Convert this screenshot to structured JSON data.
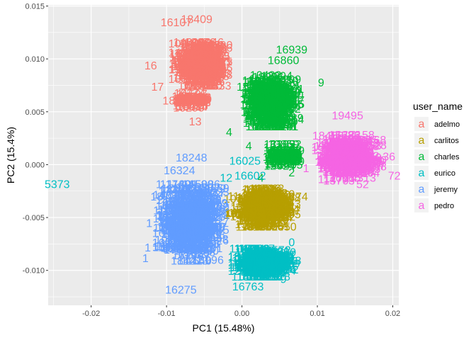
{
  "chart_data": {
    "type": "scatter",
    "title": "",
    "xlabel": "PC1 (15.48%)",
    "ylabel": "PC2 (15.4%)",
    "xlim": [
      -0.0257,
      0.0208
    ],
    "ylim": [
      -0.0133,
      0.0151
    ],
    "x_ticks": [
      -0.02,
      -0.01,
      0.0,
      0.01,
      0.02
    ],
    "x_tick_labels": [
      "-0.02",
      "-0.01",
      "0.00",
      "0.01",
      "0.02"
    ],
    "y_ticks": [
      -0.01,
      -0.005,
      0.0,
      0.005,
      0.01,
      0.015
    ],
    "y_tick_labels": [
      "-0.010",
      "-0.005",
      "0.000",
      "0.005",
      "0.010",
      "0.015"
    ],
    "grid": true,
    "legend": {
      "title": "user_name",
      "position": "right"
    },
    "series": [
      {
        "name": "adelmo",
        "color": "#F8766D",
        "clusters": [
          {
            "cx": -0.0055,
            "cy": 0.0095,
            "sx": 0.0018,
            "sy": 0.0017,
            "n": 240
          },
          {
            "cx": -0.0068,
            "cy": 0.006,
            "sx": 0.0006,
            "sy": 0.0007,
            "n": 40
          }
        ],
        "labels": [
          {
            "text": "16107",
            "x": -0.0087,
            "y": 0.0135
          },
          {
            "text": "18409",
            "x": -0.006,
            "y": 0.0138
          },
          {
            "text": "16",
            "x": -0.0121,
            "y": 0.0094
          },
          {
            "text": "17",
            "x": -0.0112,
            "y": 0.0074
          },
          {
            "text": "18",
            "x": -0.0097,
            "y": 0.0061
          },
          {
            "text": "13",
            "x": -0.0062,
            "y": 0.0041
          }
        ]
      },
      {
        "name": "carlitos",
        "color": "#B79F00",
        "clusters": [
          {
            "cx": 0.0027,
            "cy": -0.0041,
            "sx": 0.0025,
            "sy": 0.0015,
            "n": 220
          }
        ],
        "labels": [
          {
            "text": "274",
            "x": 0.0075,
            "y": -0.003
          }
        ]
      },
      {
        "name": "charles",
        "color": "#00BA38",
        "clusters": [
          {
            "cx": 0.0038,
            "cy": 0.006,
            "sx": 0.002,
            "sy": 0.002,
            "n": 250
          },
          {
            "cx": 0.0055,
            "cy": 0.0008,
            "sx": 0.0006,
            "sy": 0.0009,
            "n": 50
          }
        ],
        "labels": [
          {
            "text": "16939",
            "x": 0.0066,
            "y": 0.0109
          },
          {
            "text": "16860",
            "x": 0.0055,
            "y": 0.0099
          },
          {
            "text": "9",
            "x": 0.0105,
            "y": 0.0078
          },
          {
            "text": "4",
            "x": -0.0017,
            "y": 0.0031
          },
          {
            "text": "4",
            "x": 0.0009,
            "y": 0.0018
          },
          {
            "text": "4",
            "x": 0.0025,
            "y": -0.0012
          },
          {
            "text": "2",
            "x": 0.0066,
            "y": -0.0007
          }
        ]
      },
      {
        "name": "eurico",
        "color": "#00BFC4",
        "clusters": [
          {
            "cx": 0.003,
            "cy": -0.0093,
            "sx": 0.0023,
            "sy": 0.0011,
            "n": 220
          }
        ],
        "labels": [
          {
            "text": "5373",
            "x": -0.0245,
            "y": -0.0018
          },
          {
            "text": "16025",
            "x": 0.0004,
            "y": 0.0004
          },
          {
            "text": "16602",
            "x": 0.0011,
            "y": -0.001
          },
          {
            "text": "12",
            "x": -0.0021,
            "y": -0.0012
          },
          {
            "text": "0",
            "x": 0.0066,
            "y": -0.0073
          },
          {
            "text": "2",
            "x": 0.0071,
            "y": -0.0099
          },
          {
            "text": "16763",
            "x": 0.0008,
            "y": -0.0115
          },
          {
            "text": "9",
            "x": 0.0055,
            "y": -0.0108
          }
        ]
      },
      {
        "name": "jeremy",
        "color": "#619CFF",
        "clusters": [
          {
            "cx": -0.0068,
            "cy": -0.0055,
            "sx": 0.0025,
            "sy": 0.003,
            "n": 300
          }
        ],
        "labels": [
          {
            "text": "18248",
            "x": -0.0067,
            "y": 0.0007
          },
          {
            "text": "16324",
            "x": -0.0083,
            "y": -0.0005
          },
          {
            "text": "1",
            "x": -0.011,
            "y": -0.0018
          },
          {
            "text": "18",
            "x": -0.0113,
            "y": -0.003
          },
          {
            "text": "1",
            "x": -0.0123,
            "y": -0.0055
          },
          {
            "text": "1",
            "x": -0.0125,
            "y": -0.0078
          },
          {
            "text": "1",
            "x": -0.0128,
            "y": -0.0088
          },
          {
            "text": "16275",
            "x": -0.0081,
            "y": -0.0118
          }
        ]
      },
      {
        "name": "pedro",
        "color": "#F564E3",
        "clusters": [
          {
            "cx": 0.0142,
            "cy": 0.0006,
            "sx": 0.0024,
            "sy": 0.0018,
            "n": 230
          }
        ],
        "labels": [
          {
            "text": "19495",
            "x": 0.014,
            "y": 0.0047
          },
          {
            "text": "36",
            "x": 0.0195,
            "y": 0.0008
          },
          {
            "text": "72",
            "x": 0.0202,
            "y": -0.001
          },
          {
            "text": "52",
            "x": 0.016,
            "y": -0.0018
          },
          {
            "text": "1",
            "x": 0.0085,
            "y": -0.0003
          }
        ]
      }
    ]
  }
}
